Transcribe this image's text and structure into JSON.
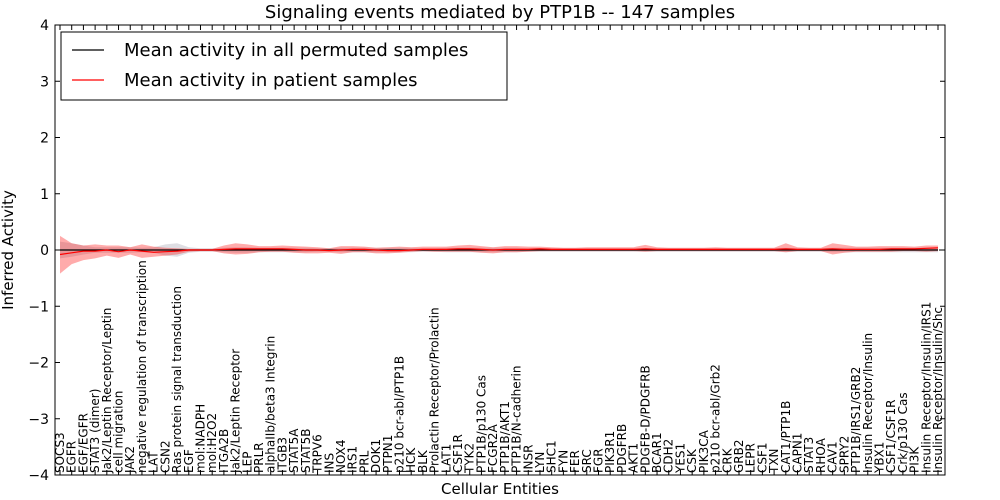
{
  "chart_data": {
    "type": "line",
    "title": "Signaling events mediated by PTP1B -- 147 samples",
    "xlabel": "Cellular Entities",
    "ylabel": "Inferred Activity",
    "ylim": [
      -4,
      4
    ],
    "yticks": [
      "4",
      "3",
      "2",
      "1",
      "0",
      "−1",
      "−2",
      "−3",
      "−4"
    ],
    "ytick_values": [
      4,
      3,
      2,
      1,
      0,
      -1,
      -2,
      -3,
      -4
    ],
    "legend_position": "top-left",
    "categories": [
      "SOCS3",
      "EGFR",
      "EGF/EGFR",
      "STAT3 (dimer)",
      "Jak2/Leptin Receptor/Leptin",
      "cell migration",
      "JAK2",
      "negative regulation of transcription",
      "LAT",
      "CSN2",
      "Ras protein signal transduction",
      "EGF",
      "mol:NADPH",
      "mol:H2O2",
      "ITGA2B",
      "Jak2/Leptin Receptor",
      "LEP",
      "PRLR",
      "alphaIIb/beta3 Integrin",
      "ITGB3",
      "STAT5A",
      "STAT5B",
      "TRPV6",
      "INS",
      "NOX4",
      "IRS1",
      "PRL",
      "DOK1",
      "PTPN1",
      "p210 bcr-abl/PTP1B",
      "HCK",
      "BLK",
      "Prolactin Receptor/Prolactin",
      "LAT1",
      "CSF1R",
      "TYK2",
      "PTP1B/p130 Cas",
      "FCGR2A",
      "PTP1B/AKT1",
      "PTP1B/N-cadherin",
      "INSR",
      "LYN",
      "SHC1",
      "FYN",
      "FER",
      "SRC",
      "FGR",
      "PIK3R1",
      "PDGFRB",
      "AKT1",
      "PDGFB-D/PDGFRB",
      "BCAR1",
      "CDH2",
      "YES1",
      "CSK",
      "PIK3CA",
      "p210 bcr-abl/Grb2",
      "CRK",
      "GRB2",
      "LEPR",
      "CSF1",
      "TXN",
      "CAT1/PTP1B",
      "CAPN1",
      "STAT3",
      "RHOA",
      "CAV1",
      "SPRY2",
      "PTP1B/IRS1/GRB2",
      "Insulin Receptor/Insulin",
      "YBX1",
      "CSF1/CSF1R",
      "Crk/p130 Cas",
      "PI3K",
      "Insulin Receptor/Insulin/IRS1",
      "Insulin Receptor/Insulin/Shc"
    ],
    "series": [
      {
        "name": "Mean activity in all permuted samples",
        "color": "#000000",
        "values": [
          0.0,
          0.0,
          0.0,
          0.0,
          0.0,
          0.0,
          0.0,
          0.0,
          0.0,
          0.0,
          0.0,
          0.0,
          0.0,
          0.0,
          0.0,
          0.0,
          0.0,
          0.0,
          0.0,
          0.0,
          0.0,
          0.0,
          0.0,
          0.0,
          0.0,
          0.0,
          0.0,
          0.0,
          0.0,
          0.0,
          0.0,
          0.0,
          0.0,
          0.0,
          0.0,
          0.0,
          0.0,
          0.0,
          0.0,
          0.0,
          0.0,
          0.0,
          0.0,
          0.0,
          0.0,
          0.0,
          0.0,
          0.0,
          0.0,
          0.0,
          0.0,
          0.0,
          0.0,
          0.0,
          0.0,
          0.0,
          0.0,
          0.0,
          0.0,
          0.0,
          0.0,
          0.0,
          0.0,
          0.0,
          0.0,
          0.0,
          0.0,
          0.0,
          0.0,
          0.0,
          0.0,
          0.0,
          0.0,
          0.0,
          0.0,
          0.0
        ],
        "band_upper": [
          0.15,
          0.12,
          0.08,
          0.05,
          0.05,
          0.05,
          0.05,
          0.04,
          0.05,
          0.1,
          0.12,
          0.05,
          0.03,
          0.03,
          0.04,
          0.05,
          0.05,
          0.04,
          0.04,
          0.04,
          0.04,
          0.04,
          0.03,
          0.03,
          0.04,
          0.04,
          0.04,
          0.04,
          0.04,
          0.04,
          0.04,
          0.03,
          0.03,
          0.04,
          0.04,
          0.04,
          0.04,
          0.04,
          0.04,
          0.04,
          0.03,
          0.03,
          0.03,
          0.03,
          0.03,
          0.03,
          0.03,
          0.03,
          0.03,
          0.03,
          0.03,
          0.03,
          0.03,
          0.03,
          0.03,
          0.03,
          0.03,
          0.03,
          0.03,
          0.03,
          0.03,
          0.03,
          0.04,
          0.03,
          0.03,
          0.03,
          0.04,
          0.04,
          0.04,
          0.04,
          0.04,
          0.04,
          0.04,
          0.04,
          0.04,
          0.04
        ],
        "band_lower": [
          -0.15,
          -0.12,
          -0.08,
          -0.05,
          -0.05,
          -0.05,
          -0.05,
          -0.04,
          -0.05,
          -0.1,
          -0.12,
          -0.05,
          -0.03,
          -0.03,
          -0.04,
          -0.05,
          -0.05,
          -0.04,
          -0.04,
          -0.04,
          -0.04,
          -0.04,
          -0.03,
          -0.03,
          -0.04,
          -0.04,
          -0.04,
          -0.04,
          -0.04,
          -0.04,
          -0.04,
          -0.03,
          -0.03,
          -0.04,
          -0.04,
          -0.04,
          -0.04,
          -0.04,
          -0.04,
          -0.04,
          -0.03,
          -0.03,
          -0.03,
          -0.03,
          -0.03,
          -0.03,
          -0.03,
          -0.03,
          -0.03,
          -0.03,
          -0.03,
          -0.03,
          -0.03,
          -0.03,
          -0.03,
          -0.03,
          -0.03,
          -0.03,
          -0.03,
          -0.03,
          -0.03,
          -0.03,
          -0.04,
          -0.03,
          -0.03,
          -0.03,
          -0.04,
          -0.04,
          -0.04,
          -0.04,
          -0.04,
          -0.04,
          -0.04,
          -0.04,
          -0.04,
          -0.04
        ]
      },
      {
        "name": "Mean activity in patient samples",
        "color": "#ff0000",
        "values": [
          -0.08,
          -0.05,
          -0.02,
          -0.02,
          0.0,
          -0.03,
          0.0,
          -0.02,
          -0.04,
          -0.03,
          -0.02,
          0.0,
          0.0,
          0.0,
          0.01,
          0.02,
          0.02,
          0.02,
          0.02,
          0.02,
          0.01,
          0.0,
          0.0,
          -0.01,
          0.0,
          0.01,
          0.01,
          0.0,
          -0.01,
          -0.01,
          0.0,
          0.01,
          0.01,
          0.01,
          0.02,
          0.02,
          0.01,
          0.0,
          0.01,
          0.01,
          0.01,
          0.02,
          0.01,
          0.01,
          0.01,
          0.01,
          0.01,
          0.01,
          0.01,
          0.01,
          0.02,
          0.01,
          0.01,
          0.01,
          0.01,
          0.01,
          0.01,
          0.01,
          0.01,
          0.01,
          0.01,
          0.01,
          0.02,
          0.01,
          0.01,
          0.01,
          0.02,
          0.01,
          0.01,
          0.01,
          0.01,
          0.02,
          0.02,
          0.02,
          0.03,
          0.04
        ],
        "band_upper": [
          0.25,
          0.12,
          0.08,
          0.1,
          0.08,
          0.08,
          0.05,
          0.1,
          0.06,
          0.04,
          0.03,
          0.02,
          0.02,
          0.02,
          0.08,
          0.12,
          0.1,
          0.07,
          0.07,
          0.08,
          0.07,
          0.06,
          0.05,
          0.03,
          0.07,
          0.07,
          0.06,
          0.04,
          0.05,
          0.06,
          0.05,
          0.06,
          0.06,
          0.06,
          0.08,
          0.09,
          0.07,
          0.05,
          0.07,
          0.07,
          0.06,
          0.06,
          0.05,
          0.04,
          0.04,
          0.05,
          0.05,
          0.05,
          0.05,
          0.05,
          0.09,
          0.05,
          0.04,
          0.04,
          0.04,
          0.04,
          0.05,
          0.04,
          0.04,
          0.04,
          0.04,
          0.04,
          0.12,
          0.05,
          0.04,
          0.04,
          0.12,
          0.09,
          0.06,
          0.06,
          0.07,
          0.07,
          0.07,
          0.06,
          0.08,
          0.08
        ],
        "band_lower": [
          -0.42,
          -0.25,
          -0.18,
          -0.15,
          -0.1,
          -0.14,
          -0.08,
          -0.14,
          -0.12,
          -0.1,
          -0.08,
          -0.03,
          -0.02,
          -0.02,
          -0.06,
          -0.08,
          -0.07,
          -0.04,
          -0.03,
          -0.03,
          -0.05,
          -0.06,
          -0.06,
          -0.05,
          -0.07,
          -0.04,
          -0.04,
          -0.06,
          -0.06,
          -0.05,
          -0.03,
          -0.02,
          -0.03,
          -0.03,
          -0.03,
          -0.03,
          -0.05,
          -0.06,
          -0.04,
          -0.04,
          -0.03,
          -0.02,
          -0.02,
          -0.02,
          -0.02,
          -0.02,
          -0.02,
          -0.02,
          -0.02,
          -0.02,
          -0.03,
          -0.02,
          -0.02,
          -0.02,
          -0.02,
          -0.02,
          -0.02,
          -0.02,
          -0.02,
          -0.02,
          -0.02,
          -0.02,
          -0.04,
          -0.02,
          -0.02,
          -0.02,
          -0.08,
          -0.05,
          -0.03,
          -0.03,
          -0.03,
          -0.03,
          -0.02,
          -0.02,
          -0.03,
          -0.02
        ]
      }
    ]
  }
}
